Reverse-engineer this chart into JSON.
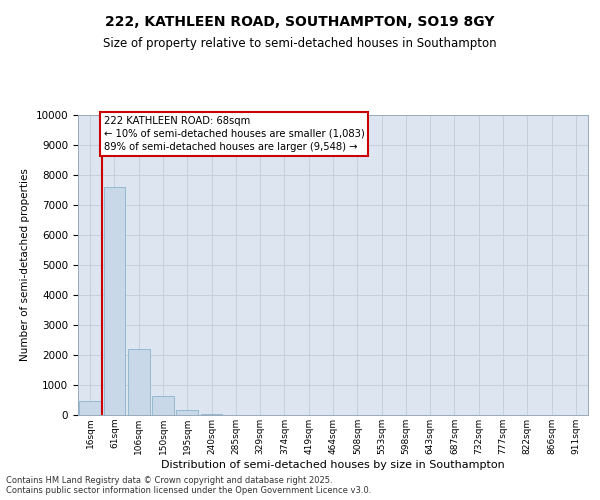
{
  "title_line1": "222, KATHLEEN ROAD, SOUTHAMPTON, SO19 8GY",
  "title_line2": "Size of property relative to semi-detached houses in Southampton",
  "xlabel": "Distribution of semi-detached houses by size in Southampton",
  "ylabel": "Number of semi-detached properties",
  "categories": [
    "16sqm",
    "61sqm",
    "106sqm",
    "150sqm",
    "195sqm",
    "240sqm",
    "285sqm",
    "329sqm",
    "374sqm",
    "419sqm",
    "464sqm",
    "508sqm",
    "553sqm",
    "598sqm",
    "643sqm",
    "687sqm",
    "732sqm",
    "777sqm",
    "822sqm",
    "866sqm",
    "911sqm"
  ],
  "values": [
    480,
    7600,
    2200,
    630,
    170,
    50,
    10,
    5,
    3,
    2,
    1,
    1,
    0,
    0,
    0,
    0,
    0,
    0,
    0,
    0,
    0
  ],
  "bar_color": "#c8d8e8",
  "bar_edgecolor": "#8ab4cc",
  "annotation_title": "222 KATHLEEN ROAD: 68sqm",
  "annotation_line2": "← 10% of semi-detached houses are smaller (1,083)",
  "annotation_line3": "89% of semi-detached houses are larger (9,548) →",
  "annotation_color": "#cc0000",
  "ylim": [
    0,
    10000
  ],
  "yticks": [
    0,
    1000,
    2000,
    3000,
    4000,
    5000,
    6000,
    7000,
    8000,
    9000,
    10000
  ],
  "grid_color": "#c0ccd8",
  "background_color": "#dde6f0",
  "footer_line1": "Contains HM Land Registry data © Crown copyright and database right 2025.",
  "footer_line2": "Contains public sector information licensed under the Open Government Licence v3.0."
}
